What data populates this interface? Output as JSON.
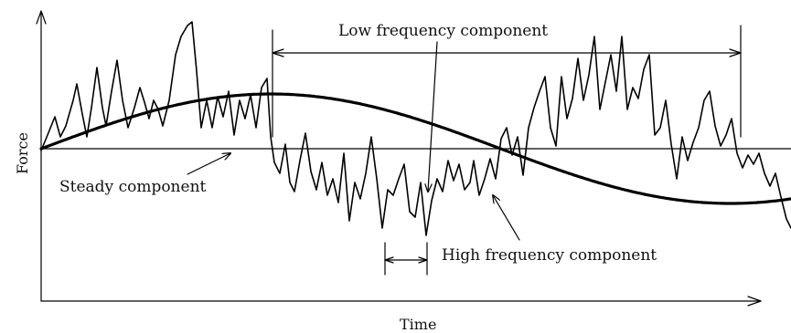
{
  "labels": {
    "y_axis": "Force",
    "x_axis": "Time",
    "low_frequency": "Low frequency component",
    "steady": "Steady component",
    "high_frequency": "High frequency component"
  },
  "colors": {
    "ink": "#000000",
    "background": "#ffffff"
  }
}
